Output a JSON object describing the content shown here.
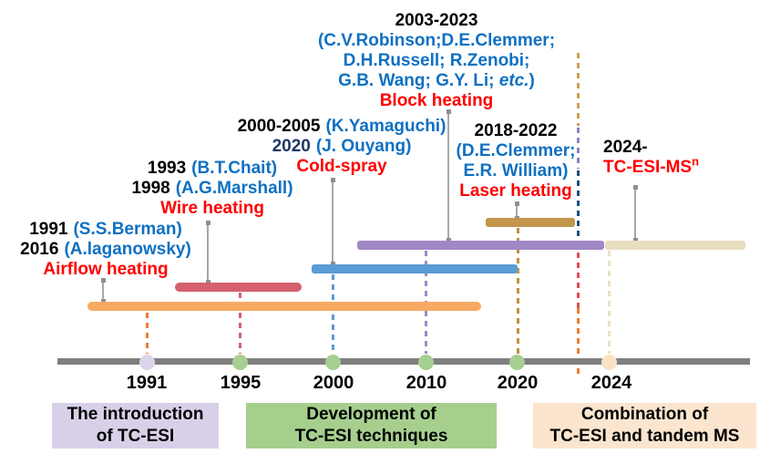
{
  "annotations": {
    "block": {
      "years": "2003-2023",
      "names1": "(C.V.Robinson;D.E.Clemmer;",
      "names2": "D.H.Russell; R.Zenobi;",
      "names3a": "G.B. Wang; G.Y. Li; ",
      "names3b": "etc.",
      "names3c": ")",
      "label": "Block heating"
    },
    "coldspray": {
      "line1_year": "2000-2005",
      "line1_name": "(K.Yamaguchi)",
      "line2_year": "2020",
      "line2_name": "(J. Ouyang)",
      "label": "Cold-spray"
    },
    "wire": {
      "line1_year": "1993",
      "line1_name": "(B.T.Chait)",
      "line2_year": "1998",
      "line2_name": "(A.G.Marshall)",
      "label": "Wire heating"
    },
    "airflow": {
      "line1_year": "1991",
      "line1_name": "(S.S.Berman)",
      "line2_year": "2016",
      "line2_name": "(A.laganowsky)",
      "label": "Airflow heating"
    },
    "laser": {
      "years": "2018-2022",
      "names1": "(D.E.Clemmer;",
      "names2": "E.R. William)",
      "label": "Laser heating"
    },
    "tandem": {
      "years": "2024-",
      "label_main": "TC-ESI-MS",
      "label_sup": "n"
    }
  },
  "timeline": {
    "years": [
      "1991",
      "1995",
      "2000",
      "2010",
      "2020",
      "2024"
    ]
  },
  "phases": {
    "intro": {
      "line1": "The introduction",
      "line2": "of TC-ESI"
    },
    "dev": {
      "line1": "Development of",
      "line2": "TC-ESI techniques"
    },
    "comb": {
      "line1": "Combination of",
      "line2": "TC-ESI and tandem MS"
    }
  },
  "colors": {
    "text_blue": "#0F70C2",
    "text_navy": "#1F3864",
    "text_red": "#FF0000",
    "bar_airflow": "#F8AA63",
    "bar_wire": "#D5606E",
    "bar_coldspray": "#5B9BD5",
    "bar_block": "#A287C6",
    "bar_tandem": "#E8DDC0",
    "bar_laser": "#C2964B",
    "timeline_gray": "#7F7F7F",
    "dot_lavender": "#DCD4E9",
    "dot_green": "#A6CF92",
    "dot_peach": "#F9E2C4",
    "box_intro": "#D8D0E8",
    "box_dev": "#A6CF8E",
    "box_comb": "#FBE5CE",
    "divider_tan": "#C9A255",
    "divider_purple": "#9183BC",
    "divider_navy": "#1F4E79",
    "divider_red": "#E14B5A",
    "divider_orange": "#ED7D31"
  }
}
